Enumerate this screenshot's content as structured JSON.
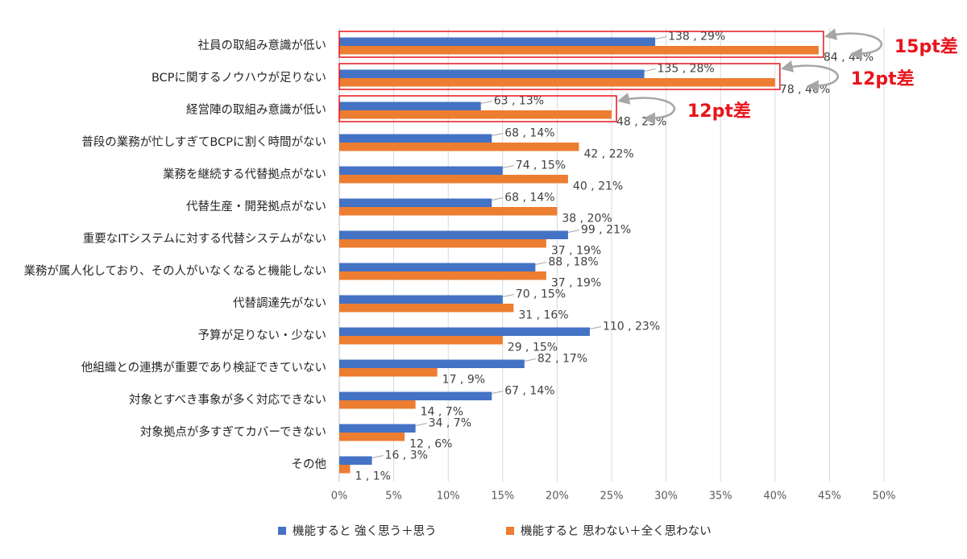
{
  "chart_data": {
    "type": "hbar",
    "categories": [
      "社員の取組み意識が低い",
      "BCPに関するノウハウが足りない",
      "経営陣の取組み意識が低い",
      "普段の業務が忙しすぎてBCPに割く時間がない",
      "業務を継続する代替拠点がない",
      "代替生産・開発拠点がない",
      "重要なITシステムに対する代替システムがない",
      "業務が属人化しており、その人がいなくなると機能しない",
      "代替調達先がない",
      "予算が足りない・少ない",
      "他組織との連携が重要であり検証できていない",
      "対象とすべき事象が多く対応できない",
      "対象拠点が多すぎてカバーできない",
      "その他"
    ],
    "series": [
      {
        "name": "機能すると 強く思う＋思う",
        "color": "#4472c4",
        "values": [
          29,
          28,
          13,
          14,
          15,
          14,
          21,
          18,
          15,
          23,
          17,
          14,
          7,
          3
        ],
        "value_labels": [
          "138 , 29%",
          "135 , 28%",
          "63 , 13%",
          "68 , 14%",
          "74 , 15%",
          "68 , 14%",
          "99 , 21%",
          "88 , 18%",
          "70 , 15%",
          "110 , 23%",
          "82 , 17%",
          "67 , 14%",
          "34 , 7%",
          "16 , 3%"
        ]
      },
      {
        "name": "機能すると 思わない＋全く思わない",
        "color": "#ed7d31",
        "values": [
          44,
          40,
          25,
          22,
          21,
          20,
          19,
          19,
          16,
          15,
          9,
          7,
          6,
          1
        ],
        "value_labels": [
          "84 , 44%",
          "78 , 40%",
          "48 , 25%",
          "42 , 22%",
          "40 , 21%",
          "38 , 20%",
          "37 , 19%",
          "37 , 19%",
          "31 , 16%",
          "29 , 15%",
          "17 , 9%",
          "14 , 7%",
          "12 , 6%",
          "1 , 1%"
        ]
      }
    ],
    "xlim": [
      0,
      50
    ],
    "xticks": [
      {
        "value": 0,
        "label": "0%"
      },
      {
        "value": 5,
        "label": "5%"
      },
      {
        "value": 10,
        "label": "10%"
      },
      {
        "value": 15,
        "label": "15%"
      },
      {
        "value": 20,
        "label": "20%"
      },
      {
        "value": 25,
        "label": "25%"
      },
      {
        "value": 30,
        "label": "30%"
      },
      {
        "value": 35,
        "label": "35%"
      },
      {
        "value": 40,
        "label": "40%"
      },
      {
        "value": 45,
        "label": "45%"
      },
      {
        "value": 50,
        "label": "50%"
      }
    ],
    "grid": true,
    "legend": "bottom",
    "annotations": [
      "15pt差",
      "12pt差",
      "12pt差"
    ]
  }
}
